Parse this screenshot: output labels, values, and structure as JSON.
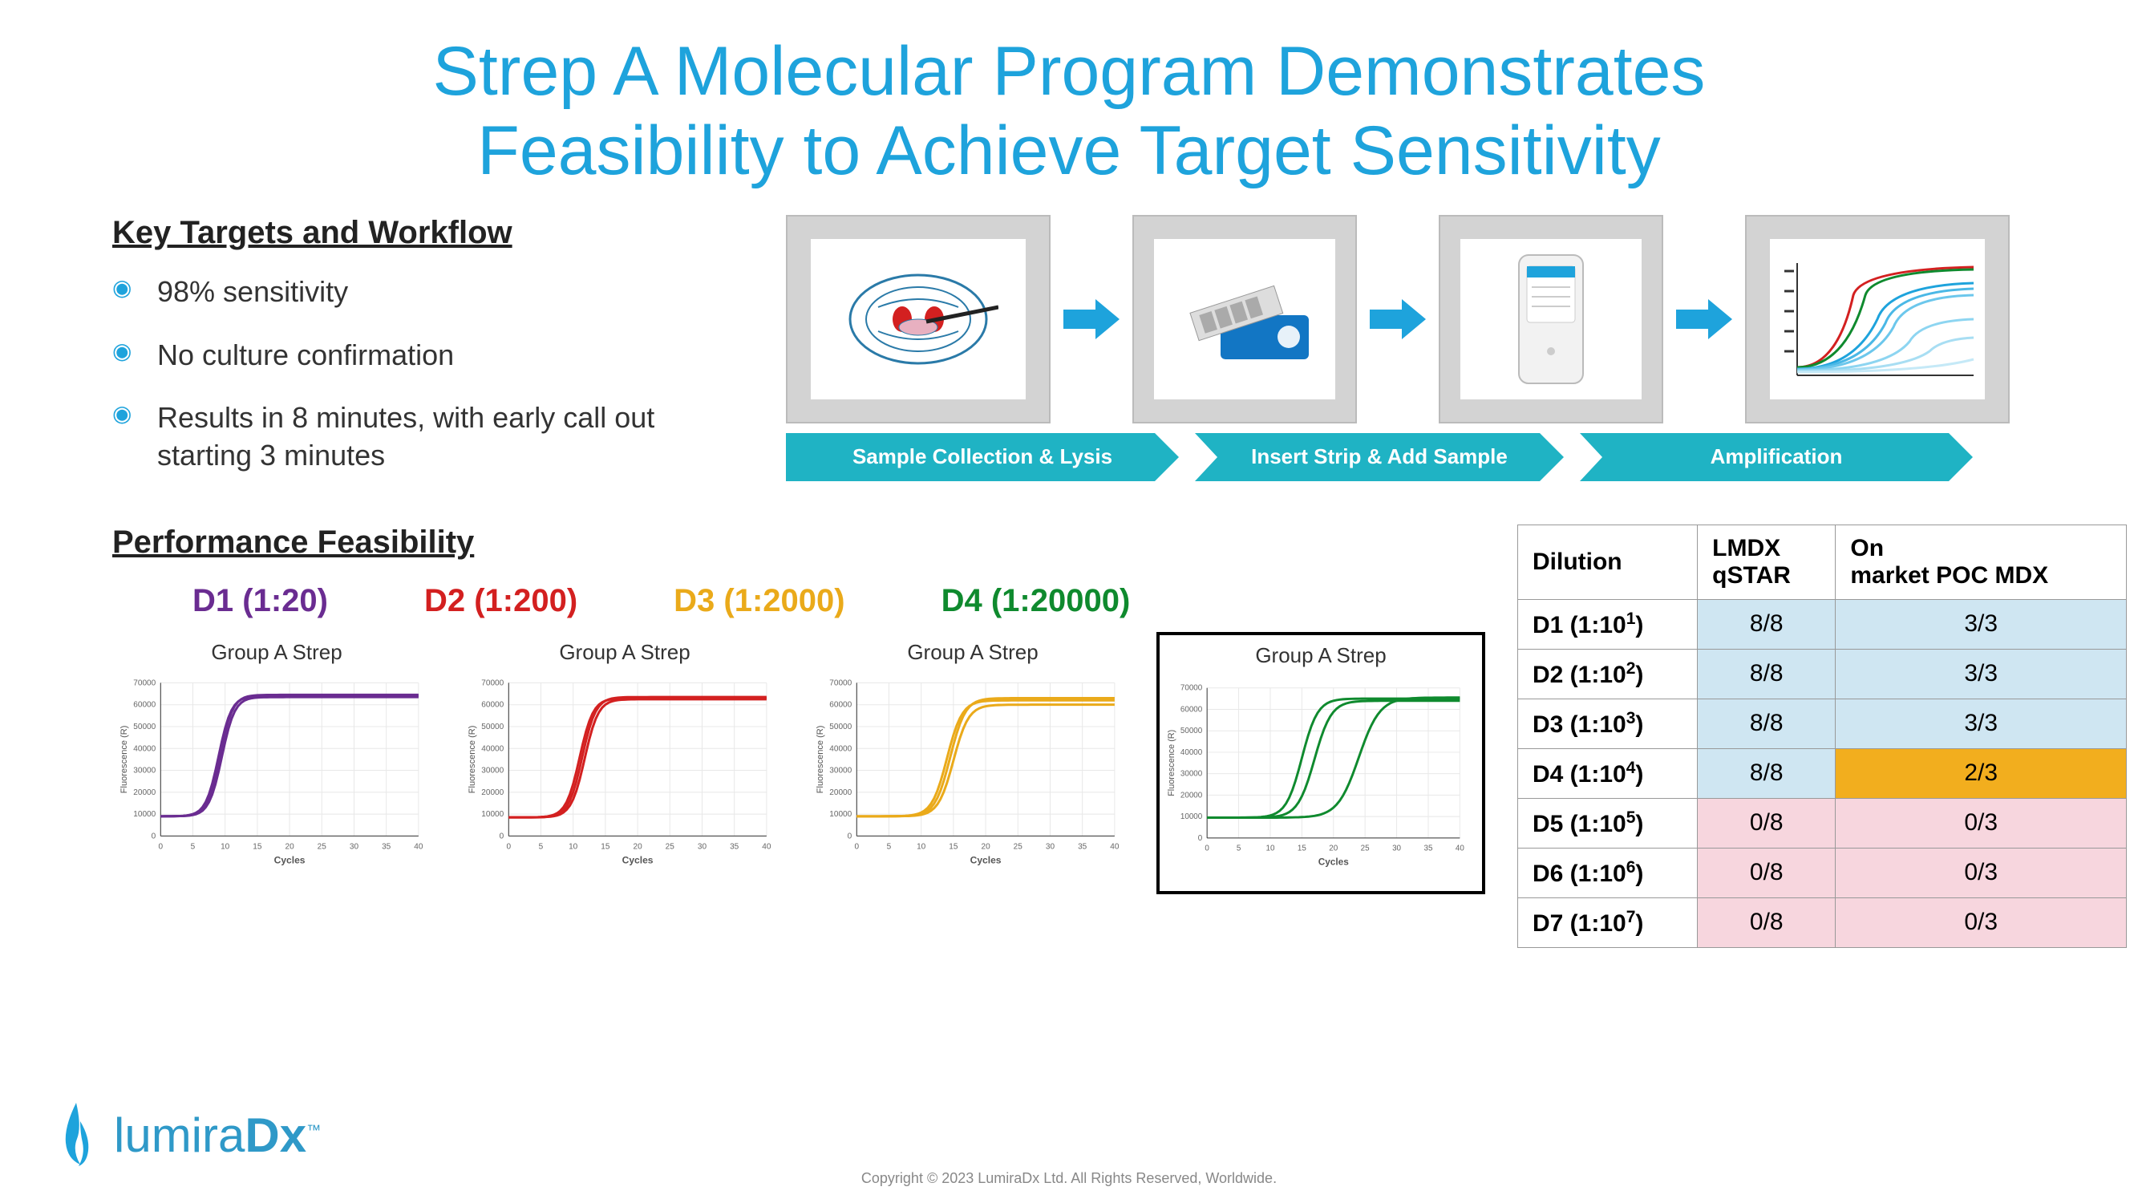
{
  "title_line1": "Strep A Molecular Program Demonstrates",
  "title_line2": "Feasibility to Achieve Target Sensitivity",
  "section_targets_header": "Key Targets and Workflow",
  "bullets": [
    "98% sensitivity",
    "No culture confirmation",
    "Results in 8 minutes, with early call out starting 3 minutes"
  ],
  "workflow": {
    "steps": [
      {
        "label": "Sample Collection & Lysis",
        "chevron_width": 490
      },
      {
        "label": "Insert Strip & Add Sample",
        "chevron_width": 460
      },
      {
        "label": "Amplification",
        "chevron_width": 490
      }
    ],
    "chevron_color": "#1fb3c4",
    "chevron_text_color": "#ffffff",
    "arrow_color": "#1ea3dc"
  },
  "section_perf_header": "Performance Feasibility",
  "dilutions": [
    {
      "label": "D1 (1:20)",
      "color": "#6a2c91",
      "color_name": "purple"
    },
    {
      "label": "D2 (1:200)",
      "color": "#d32020",
      "color_name": "red"
    },
    {
      "label": "D3 (1:2000)",
      "color": "#eaaa1a",
      "color_name": "gold"
    },
    {
      "label": "D4 (1:20000)",
      "color": "#0f8a2e",
      "color_name": "green"
    }
  ],
  "charts": {
    "common": {
      "title": "Group A Strep",
      "x_label": "Cycles",
      "y_label": "Fluorescence (R)",
      "x_ticks": [
        0,
        5,
        10,
        15,
        20,
        25,
        30,
        35,
        40
      ],
      "y_ticks": [
        0,
        10000,
        20000,
        30000,
        40000,
        50000,
        60000,
        70000
      ],
      "y_max": 70000,
      "grid_color": "#e8e8e8",
      "axis_color": "#333333",
      "tick_fontsize": 10,
      "line_width": 3,
      "background_color": "#ffffff"
    },
    "panels": [
      {
        "color": "#6a2c91",
        "highlight": false,
        "curves": [
          {
            "baseline": 9000,
            "plateau": 64000,
            "midpoint": 9,
            "steep": 1.0
          },
          {
            "baseline": 9000,
            "plateau": 63500,
            "midpoint": 9.5,
            "steep": 1.0
          },
          {
            "baseline": 9000,
            "plateau": 64500,
            "midpoint": 9.2,
            "steep": 1.0
          }
        ]
      },
      {
        "color": "#d32020",
        "highlight": false,
        "curves": [
          {
            "baseline": 8500,
            "plateau": 63000,
            "midpoint": 11,
            "steep": 0.95
          },
          {
            "baseline": 8500,
            "plateau": 62500,
            "midpoint": 11.8,
            "steep": 0.95
          },
          {
            "baseline": 8500,
            "plateau": 63500,
            "midpoint": 11.4,
            "steep": 0.95
          }
        ]
      },
      {
        "color": "#eaaa1a",
        "highlight": false,
        "curves": [
          {
            "baseline": 9000,
            "plateau": 62000,
            "midpoint": 14,
            "steep": 0.85
          },
          {
            "baseline": 9000,
            "plateau": 60000,
            "midpoint": 15,
            "steep": 0.85
          },
          {
            "baseline": 9000,
            "plateau": 63000,
            "midpoint": 14.5,
            "steep": 0.85
          }
        ]
      },
      {
        "color": "#0f8a2e",
        "highlight": true,
        "curves": [
          {
            "baseline": 9500,
            "plateau": 65000,
            "midpoint": 15,
            "steep": 0.8
          },
          {
            "baseline": 9500,
            "plateau": 64000,
            "midpoint": 17,
            "steep": 0.75
          },
          {
            "baseline": 9500,
            "plateau": 65500,
            "midpoint": 24,
            "steep": 0.6
          }
        ]
      }
    ]
  },
  "table": {
    "headers": [
      "Dilution",
      "LMDX qSTAR",
      "On market POC MDX"
    ],
    "rows": [
      {
        "label_prefix": "D1 (1:10",
        "sup": "1",
        "label_suffix": ")",
        "c1": "8/8",
        "c2": "3/3",
        "c1_bg": "#cfe6f2",
        "c2_bg": "#cfe6f2"
      },
      {
        "label_prefix": "D2 (1:10",
        "sup": "2",
        "label_suffix": ")",
        "c1": "8/8",
        "c2": "3/3",
        "c1_bg": "#cfe6f2",
        "c2_bg": "#cfe6f2"
      },
      {
        "label_prefix": "D3 (1:10",
        "sup": "3",
        "label_suffix": ")",
        "c1": "8/8",
        "c2": "3/3",
        "c1_bg": "#cfe6f2",
        "c2_bg": "#cfe6f2"
      },
      {
        "label_prefix": "D4 (1:10",
        "sup": "4",
        "label_suffix": ")",
        "c1": "8/8",
        "c2": "2/3",
        "c1_bg": "#cfe6f2",
        "c2_bg": "#f2ae1e"
      },
      {
        "label_prefix": "D5 (1:10",
        "sup": "5",
        "label_suffix": ")",
        "c1": "0/8",
        "c2": "0/3",
        "c1_bg": "#f7d6de",
        "c2_bg": "#f7d6de"
      },
      {
        "label_prefix": "D6 (1:10",
        "sup": "6",
        "label_suffix": ")",
        "c1": "0/8",
        "c2": "0/3",
        "c1_bg": "#f7d6de",
        "c2_bg": "#f7d6de"
      },
      {
        "label_prefix": "D7 (1:10",
        "sup": "7",
        "label_suffix": ")",
        "c1": "0/8",
        "c2": "0/3",
        "c1_bg": "#f7d6de",
        "c2_bg": "#f7d6de"
      }
    ]
  },
  "logo": {
    "text_light": "lumira",
    "text_bold": "Dx",
    "flame_color": "#1ea3dc"
  },
  "copyright": "Copyright © 2023 LumiraDx Ltd. All Rights Reserved, Worldwide."
}
